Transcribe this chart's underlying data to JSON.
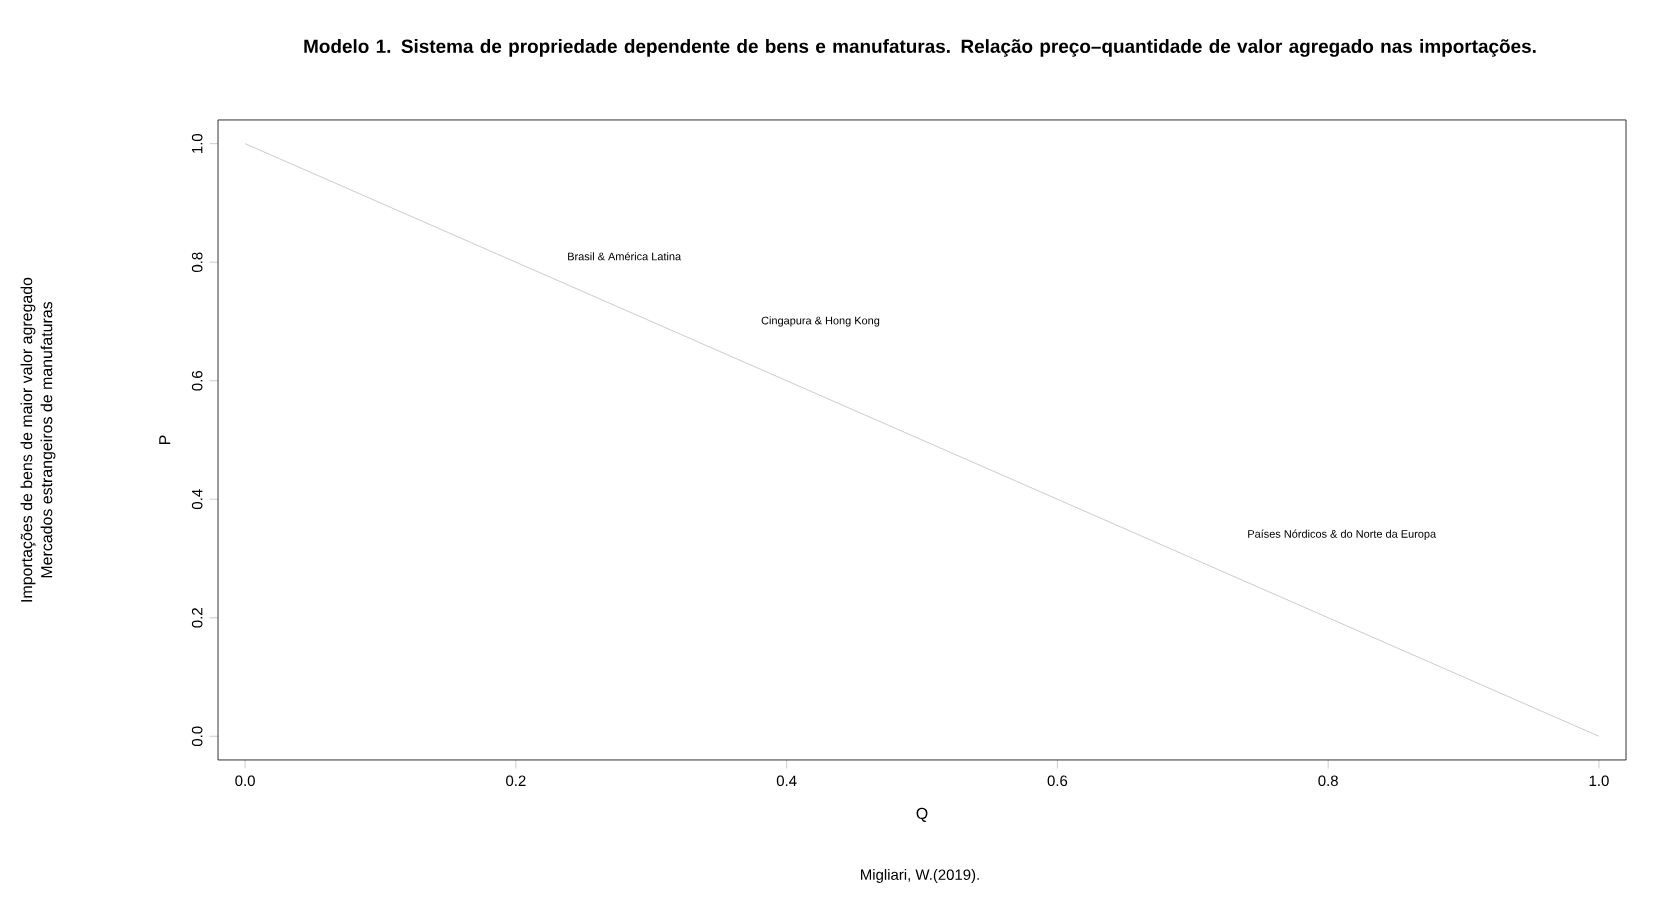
{
  "chart_data": {
    "type": "line",
    "title": "Modelo 1. Sistema de propriedade dependente de bens e manufaturas. Relação preço–quantidade de valor agregado nas importações.",
    "xlabel": "Q",
    "ylabel": "P",
    "x": [
      0,
      1
    ],
    "series": [
      {
        "color": "#bebebe",
        "values": [
          1,
          0
        ]
      }
    ],
    "xlim": [
      -0.02,
      1.02
    ],
    "ylim": [
      -0.04,
      1.04
    ],
    "xticks": [
      {
        "value": 0,
        "label": "0.0"
      },
      {
        "value": 0.2,
        "label": "0.2"
      },
      {
        "value": 0.4,
        "label": "0.4"
      },
      {
        "value": 0.6,
        "label": "0.6"
      },
      {
        "value": 0.8,
        "label": "0.8"
      },
      {
        "value": 1,
        "label": "1.0"
      }
    ],
    "yticks": [
      {
        "value": 0,
        "label": "0.0"
      },
      {
        "value": 0.2,
        "label": "0.2"
      },
      {
        "value": 0.4,
        "label": "0.4"
      },
      {
        "value": 0.6,
        "label": "0.6"
      },
      {
        "value": 0.8,
        "label": "0.8"
      },
      {
        "value": 1,
        "label": "1.0"
      }
    ],
    "annotations": [
      "Importações de bens de maior valor agregado",
      "Mercados estrangeiros de manufaturas",
      "Migliari, W.(2019).",
      "Brasil & América Latina",
      "Cingapura & Hong Kong",
      "Países Nórdicos & do Norte da Europa"
    ]
  }
}
